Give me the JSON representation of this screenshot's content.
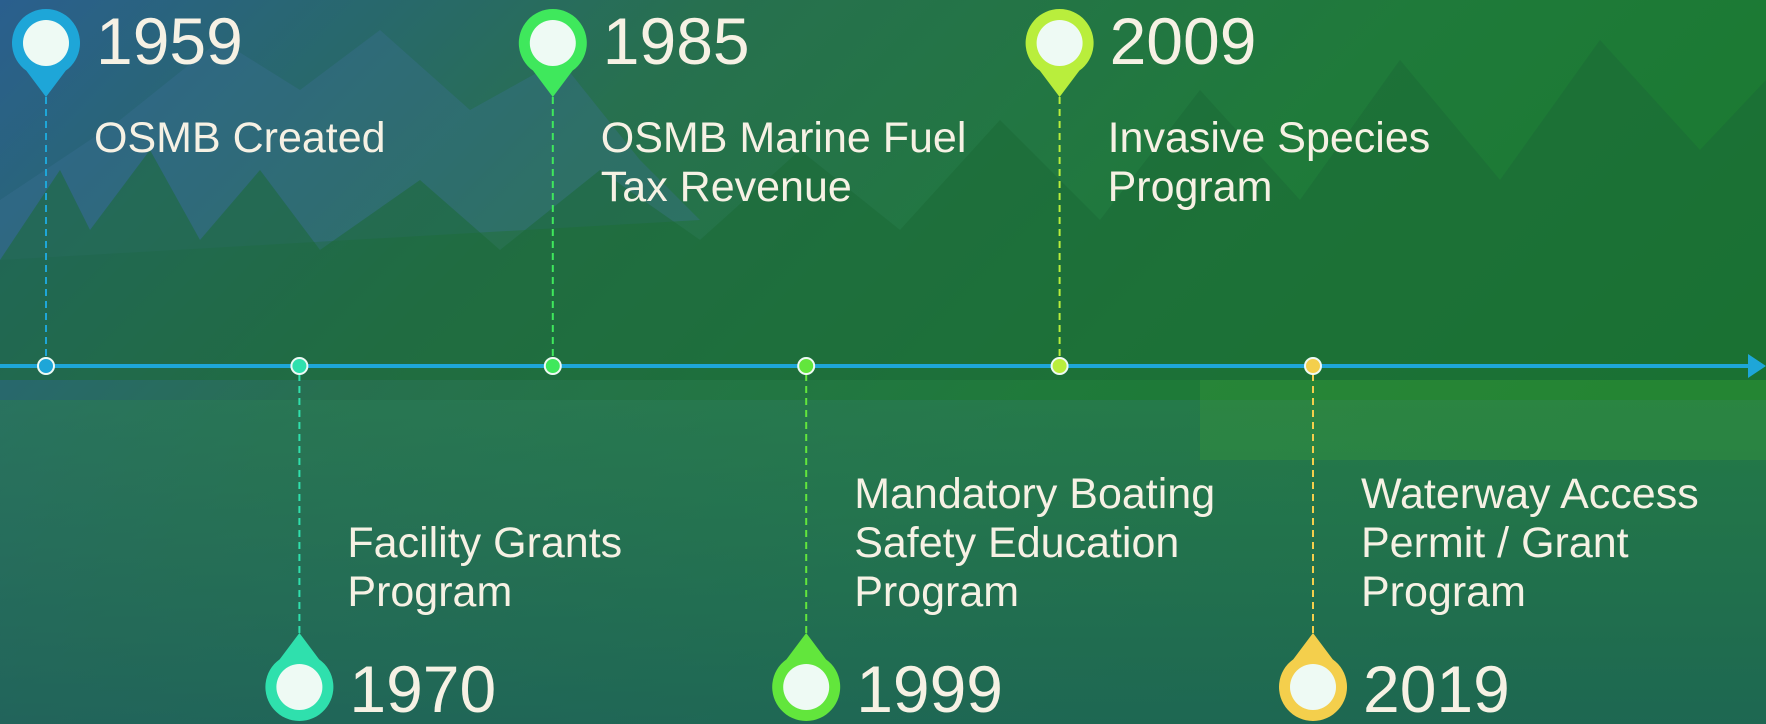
{
  "timeline": {
    "events": [
      {
        "year": "1959",
        "label": [
          "OSMB Created"
        ],
        "position": "top",
        "color": "#1ea6d8"
      },
      {
        "year": "1970",
        "label": [
          "Facility Grants",
          "Program"
        ],
        "position": "bottom",
        "color": "#2fe0ad"
      },
      {
        "year": "1985",
        "label": [
          "OSMB Marine Fuel",
          "Tax Revenue"
        ],
        "position": "top",
        "color": "#3fe85c"
      },
      {
        "year": "1999",
        "label": [
          "Mandatory Boating",
          "Safety Education",
          "Program"
        ],
        "position": "bottom",
        "color": "#62e63c"
      },
      {
        "year": "2009",
        "label": [
          "Invasive Species",
          "Program"
        ],
        "position": "top",
        "color": "#b9ee3c"
      },
      {
        "year": "2019",
        "label": [
          "Waterway Access",
          "Permit / Grant",
          "Program"
        ],
        "position": "bottom",
        "color": "#f4cf4c"
      }
    ]
  }
}
